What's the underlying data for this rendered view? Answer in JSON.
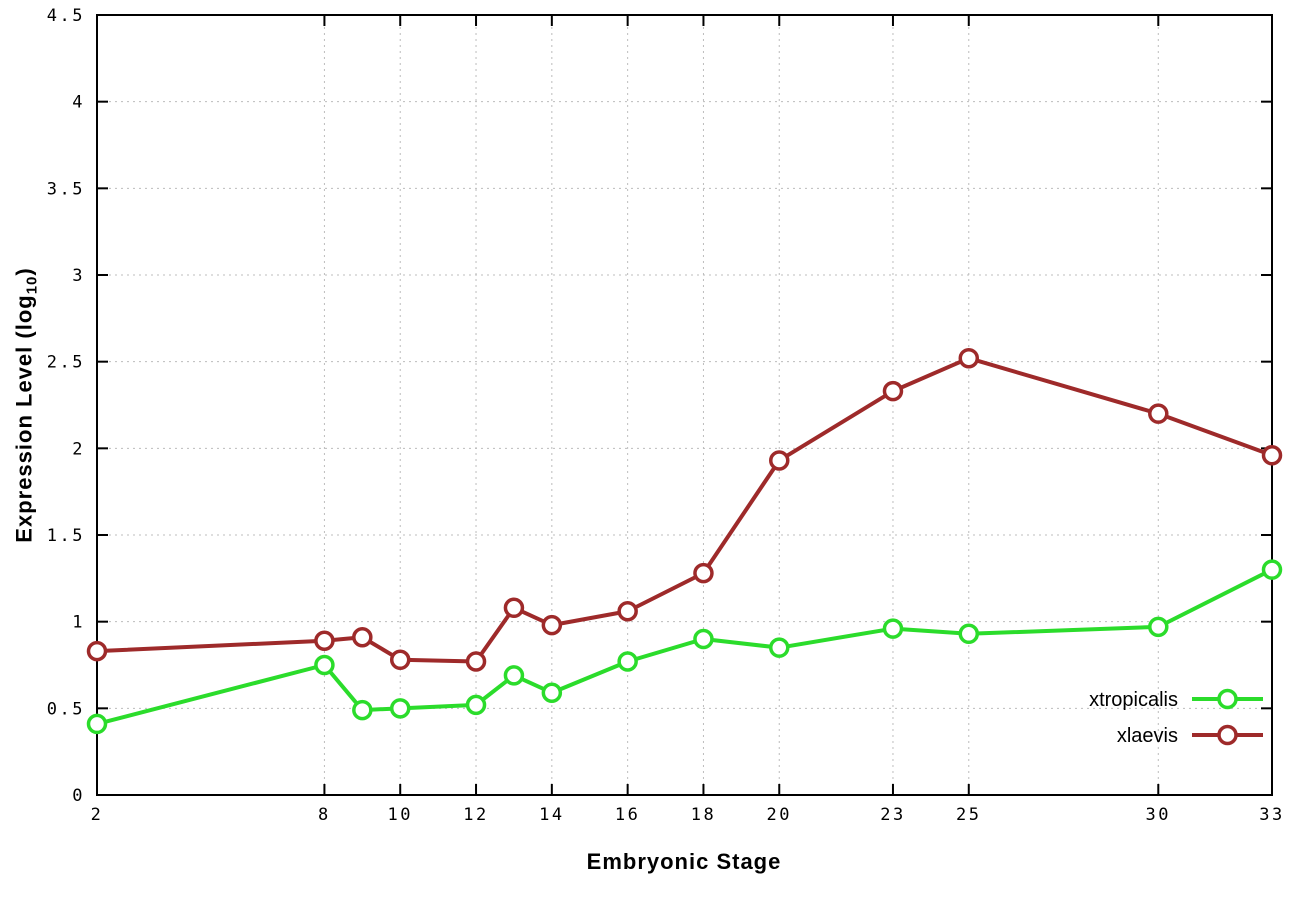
{
  "chart_data": {
    "type": "line",
    "title": "",
    "xlabel": "Embryonic Stage",
    "ylabel": "Expression Level (log10)",
    "ylabel_parts": [
      "Expression Level (log",
      "10",
      ")"
    ],
    "x": [
      2,
      8,
      9,
      10,
      12,
      13,
      14,
      16,
      18,
      20,
      23,
      25,
      30,
      33
    ],
    "xlim": [
      2,
      33
    ],
    "ylim": [
      0,
      4.5
    ],
    "xticks": [
      2,
      8,
      10,
      12,
      14,
      16,
      18,
      20,
      23,
      25,
      30,
      33
    ],
    "xtick_labels": [
      "2",
      "8",
      "10",
      "12",
      "14",
      "16",
      "18",
      "20",
      "23",
      "25",
      "30",
      "33"
    ],
    "yticks": [
      0,
      0.5,
      1,
      1.5,
      2,
      2.5,
      3,
      3.5,
      4,
      4.5
    ],
    "ytick_labels": [
      "0",
      "0.5",
      "1",
      "1.5",
      "2",
      "2.5",
      "3",
      "3.5",
      "4",
      "4.5"
    ],
    "grid": true,
    "legend_position": "bottom-right",
    "series": [
      {
        "name": "xtropicalis",
        "color": "#2bdc2b",
        "values": [
          0.41,
          0.75,
          0.49,
          0.5,
          0.52,
          0.69,
          0.59,
          0.77,
          0.9,
          0.85,
          0.96,
          0.93,
          0.97,
          1.3
        ]
      },
      {
        "name": "xlaevis",
        "color": "#9e2a2a",
        "values": [
          0.83,
          0.89,
          0.91,
          0.78,
          0.77,
          1.08,
          0.98,
          1.06,
          1.28,
          1.93,
          2.33,
          2.52,
          2.2,
          1.96
        ]
      }
    ],
    "style": {
      "grid_color": "#bcbcbc",
      "border_color": "#000000",
      "marker_fill": "#ffffff",
      "line_width": 4,
      "marker_radius": 8.5,
      "marker_stroke": 3.5
    }
  }
}
